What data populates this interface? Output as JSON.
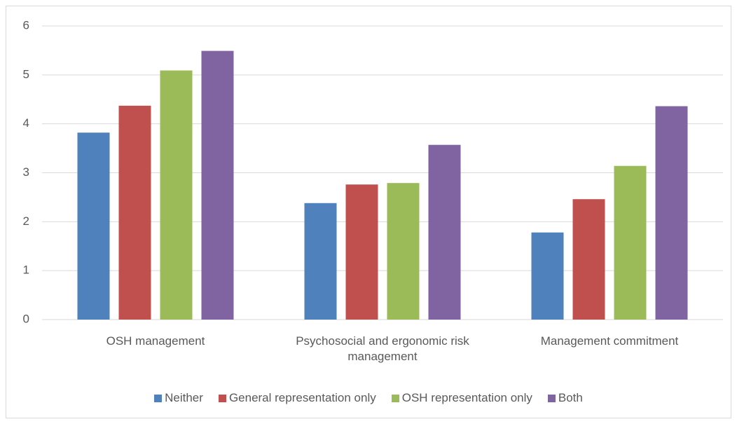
{
  "chart_data": {
    "type": "bar",
    "categories": [
      "OSH management",
      "Psychosocial and ergonomic risk management",
      "Management commitment"
    ],
    "series": [
      {
        "name": "Neither",
        "color": "#4f81bd",
        "values": [
          3.82,
          2.38,
          1.78
        ]
      },
      {
        "name": "General representation only",
        "color": "#c0504d",
        "values": [
          4.37,
          2.76,
          2.46
        ]
      },
      {
        "name": "OSH representation only",
        "color": "#9bbb59",
        "values": [
          5.09,
          2.79,
          3.14
        ]
      },
      {
        "name": "Both",
        "color": "#8064a2",
        "values": [
          5.49,
          3.57,
          4.36
        ]
      }
    ],
    "ylim": [
      0,
      6
    ],
    "yticks": [
      0,
      1,
      2,
      3,
      4,
      5,
      6
    ],
    "grid": true,
    "legend": "bottom"
  }
}
